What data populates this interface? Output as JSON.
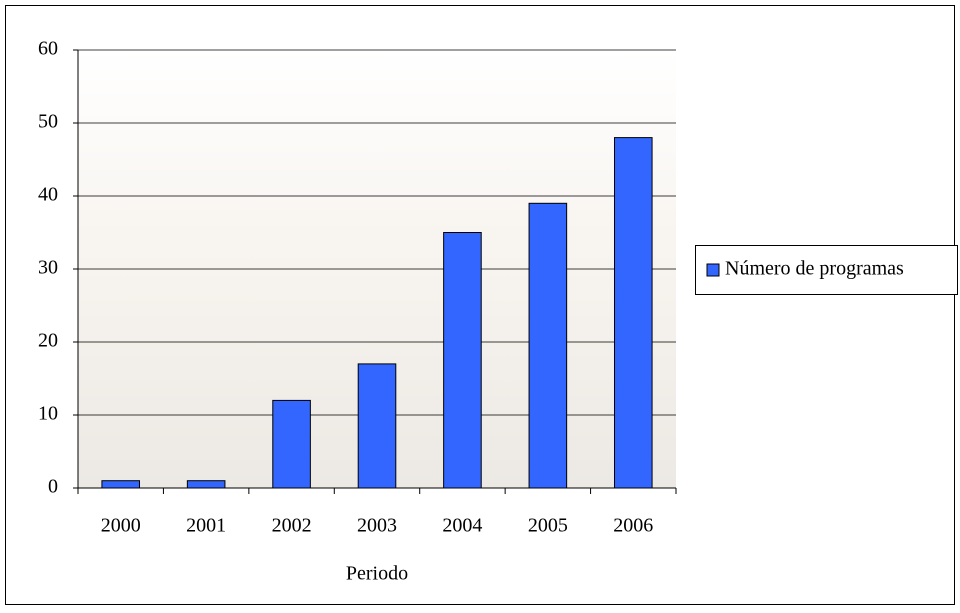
{
  "chart_data": {
    "type": "bar",
    "x_label": "Periodo",
    "categories": [
      "2000",
      "2001",
      "2002",
      "2003",
      "2004",
      "2005",
      "2006"
    ],
    "series": [
      {
        "name": "Número de programas",
        "color": "#3366ff",
        "values": [
          1,
          1,
          12,
          17,
          35,
          39,
          48
        ]
      }
    ],
    "ylim": [
      0,
      60
    ],
    "yticks": [
      0,
      10,
      20,
      30,
      40,
      50,
      60
    ],
    "grid": true,
    "legend": "right"
  }
}
